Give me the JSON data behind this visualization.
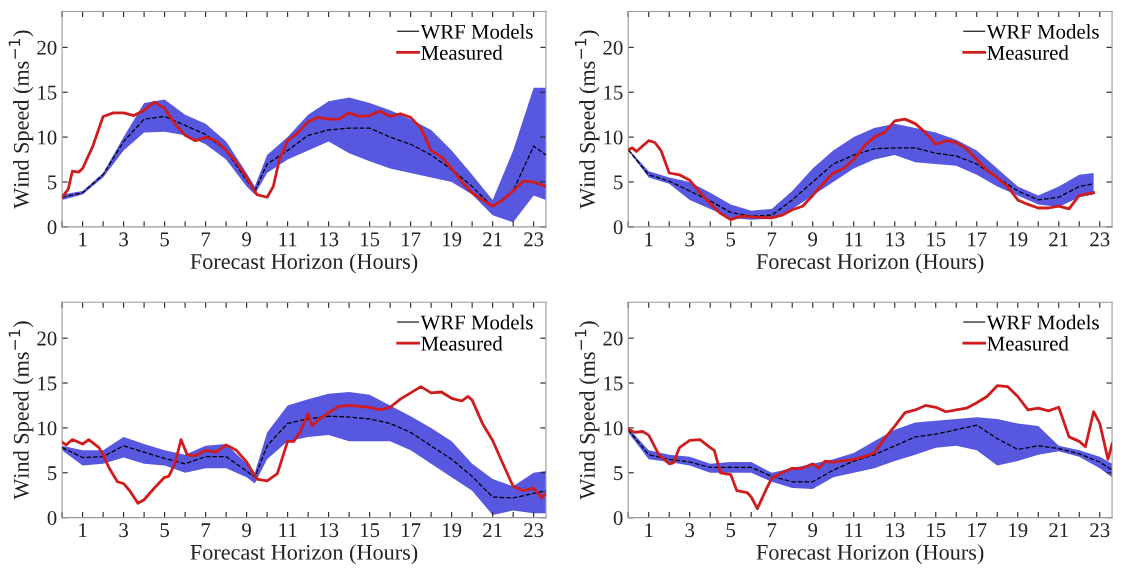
{
  "chart_data": [
    {
      "type": "line",
      "xlabel": "Forecast Horizon (Hours)",
      "ylabel": "Wind Speed (ms$^{−1}$)",
      "xlim": [
        0,
        23.6
      ],
      "ylim": [
        0,
        24
      ],
      "yticks": [
        0,
        5,
        10,
        15,
        20
      ],
      "xticks": [
        {
          "value": 0,
          "label": null
        },
        1,
        {
          "value": 2,
          "label": null
        },
        3,
        {
          "value": 4,
          "label": null
        },
        5,
        {
          "value": 6,
          "label": null
        },
        7,
        {
          "value": 8,
          "label": null
        },
        9,
        {
          "value": 10,
          "label": null
        },
        11,
        {
          "value": 12,
          "label": null
        },
        13,
        {
          "value": 14,
          "label": null
        },
        15,
        {
          "value": 16,
          "label": null
        },
        17,
        {
          "value": 18,
          "label": null
        },
        19,
        {
          "value": 20,
          "label": null
        },
        21,
        {
          "value": 22,
          "label": null
        },
        23
      ],
      "grid": false,
      "legend": "top right",
      "series": [
        {
          "name": "WRF Models",
          "color": "#000000",
          "line_style": "dashed",
          "x": [
            0,
            1,
            2,
            3,
            4,
            5,
            6,
            7,
            8,
            9,
            9.4,
            10,
            11,
            12,
            13,
            14,
            15,
            16,
            17,
            18,
            19,
            20,
            21,
            22,
            23,
            23.6
          ],
          "values": [
            3.3,
            3.8,
            5.8,
            9.5,
            12,
            12.3,
            11.3,
            10.3,
            8.5,
            5.2,
            4,
            7,
            8.5,
            10.2,
            10.8,
            11,
            11,
            10,
            9.2,
            8,
            6.4,
            4.5,
            2.2,
            4,
            9,
            8
          ],
          "lower": [
            3,
            3.6,
            5.5,
            8.5,
            10.5,
            10.6,
            10.2,
            9.2,
            7.5,
            4.5,
            3.6,
            6,
            7.5,
            8.5,
            9.5,
            8.2,
            7.3,
            6.5,
            6,
            5.5,
            5,
            3.6,
            1.3,
            0.5,
            3.5,
            3
          ],
          "upper": [
            3.6,
            4,
            6,
            10,
            13.8,
            14.2,
            12.5,
            11.5,
            9.5,
            6,
            4.5,
            8,
            10,
            12.5,
            14,
            14.4,
            13.8,
            13,
            12,
            10.8,
            8.5,
            5.8,
            3,
            8.5,
            15.5,
            15.5
          ]
        },
        {
          "name": "Measured",
          "color": "#d01c1c",
          "line_style": "solid",
          "x": [
            0,
            0.3,
            0.5,
            0.8,
            1,
            1.5,
            2,
            2.5,
            3,
            3.5,
            4,
            4.5,
            5,
            5.5,
            6,
            6.5,
            7,
            7.5,
            8,
            8.5,
            9,
            9.5,
            10,
            10.3,
            10.6,
            11,
            11.5,
            12,
            12.5,
            13,
            13.5,
            14,
            14.5,
            15,
            15.5,
            16,
            16.5,
            17,
            17.5,
            18,
            18.5,
            19,
            19.5,
            20,
            20.5,
            21,
            21.5,
            22,
            22.5,
            23,
            23.6
          ],
          "values": [
            3.3,
            4.2,
            6.2,
            6.1,
            6.5,
            9,
            12.3,
            12.7,
            12.7,
            12.4,
            13,
            13.9,
            13.2,
            11.5,
            10.2,
            9.6,
            10,
            9.6,
            8.5,
            7.2,
            5.5,
            3.6,
            3.3,
            4.5,
            7.5,
            9.6,
            10.5,
            11.7,
            12.2,
            12,
            12,
            12.7,
            12.3,
            12.4,
            12.9,
            12.3,
            12.6,
            12.2,
            11,
            8.5,
            7.8,
            6.5,
            5,
            3.8,
            3,
            2.3,
            3,
            4,
            5.1,
            5,
            4.5
          ]
        }
      ]
    },
    {
      "type": "line",
      "xlabel": "Forecast Horizon (Hours)",
      "ylabel": "Wind Speed (ms$^{−1}$)",
      "xlim": [
        0,
        23.6
      ],
      "ylim": [
        0,
        24
      ],
      "yticks": [
        0,
        5,
        10,
        15,
        20
      ],
      "xticks": [
        {
          "value": 0,
          "label": null
        },
        1,
        {
          "value": 2,
          "label": null
        },
        3,
        {
          "value": 4,
          "label": null
        },
        5,
        {
          "value": 6,
          "label": null
        },
        7,
        {
          "value": 8,
          "label": null
        },
        9,
        {
          "value": 10,
          "label": null
        },
        11,
        {
          "value": 12,
          "label": null
        },
        13,
        {
          "value": 14,
          "label": null
        },
        15,
        {
          "value": 16,
          "label": null
        },
        17,
        {
          "value": 18,
          "label": null
        },
        19,
        {
          "value": 20,
          "label": null
        },
        21,
        {
          "value": 22,
          "label": null
        },
        23
      ],
      "grid": false,
      "legend": "top right",
      "series": [
        {
          "name": "WRF Models",
          "color": "#000000",
          "line_style": "dashed",
          "x": [
            0,
            1,
            2,
            3,
            4,
            5,
            6,
            7,
            8,
            9,
            10,
            11,
            12,
            13,
            14,
            15,
            16,
            17,
            18,
            19,
            20,
            21,
            22,
            22.7
          ],
          "values": [
            8.6,
            5.8,
            5.1,
            4,
            2.9,
            1.6,
            1.2,
            1.3,
            3,
            5,
            7,
            8,
            8.7,
            8.8,
            8.8,
            8.2,
            7.9,
            7,
            5.5,
            4,
            3,
            3.3,
            4.5,
            4.8
          ],
          "lower": [
            8.5,
            5.5,
            4.8,
            3,
            2,
            1,
            0.8,
            0.9,
            2,
            3.5,
            5,
            6.5,
            7.5,
            8,
            7.2,
            7,
            6.8,
            5.8,
            4.5,
            3.5,
            2.5,
            2.2,
            3.3,
            3.6
          ],
          "upper": [
            8.7,
            6.2,
            5.5,
            5,
            3.8,
            2.5,
            1.8,
            2,
            4,
            6.5,
            8.5,
            10,
            11,
            11.5,
            11,
            10.5,
            9.7,
            8.5,
            6.5,
            4.5,
            3.5,
            4.5,
            5.8,
            6
          ]
        },
        {
          "name": "Measured",
          "color": "#d01c1c",
          "line_style": "solid",
          "x": [
            0,
            0.2,
            0.4,
            0.7,
            1,
            1.3,
            1.6,
            2,
            2.5,
            3,
            3.5,
            4,
            4.5,
            5,
            5.5,
            6,
            7,
            7.5,
            8,
            8.5,
            9,
            9.5,
            10,
            10.5,
            11,
            11.5,
            12,
            12.5,
            13,
            13.5,
            14,
            14.5,
            15,
            15.5,
            16,
            16.5,
            17,
            17.5,
            18,
            18.5,
            19,
            19.5,
            20,
            20.5,
            21,
            21.5,
            22,
            22.7
          ],
          "values": [
            8.6,
            8.8,
            8.4,
            9,
            9.6,
            9.4,
            8.5,
            6,
            5.8,
            5.2,
            3.8,
            2.6,
            1.5,
            0.8,
            1.2,
            1.1,
            1,
            1.3,
            1.9,
            2.3,
            3.5,
            4.8,
            6,
            6.5,
            7.5,
            9,
            10,
            10.5,
            11.8,
            12,
            11.5,
            10.5,
            9.2,
            9.6,
            9.4,
            8.7,
            7.5,
            6.3,
            5.5,
            4.5,
            3,
            2.5,
            2.1,
            2.1,
            2.3,
            2,
            3.5,
            3.8
          ]
        }
      ]
    },
    {
      "type": "line",
      "xlabel": "Forecast Horizon (Hours)",
      "ylabel": "Wind Speed (ms$^{−1}$)",
      "xlim": [
        0,
        23.6
      ],
      "ylim": [
        0,
        24
      ],
      "yticks": [
        0,
        5,
        10,
        15,
        20
      ],
      "xticks": [
        {
          "value": 0,
          "label": null
        },
        1,
        {
          "value": 2,
          "label": null
        },
        3,
        {
          "value": 4,
          "label": null
        },
        5,
        {
          "value": 6,
          "label": null
        },
        7,
        {
          "value": 8,
          "label": null
        },
        9,
        {
          "value": 10,
          "label": null
        },
        11,
        {
          "value": 12,
          "label": null
        },
        13,
        {
          "value": 14,
          "label": null
        },
        15,
        {
          "value": 16,
          "label": null
        },
        17,
        {
          "value": 18,
          "label": null
        },
        19,
        {
          "value": 20,
          "label": null
        },
        21,
        {
          "value": 22,
          "label": null
        },
        23
      ],
      "grid": false,
      "legend": "top right",
      "series": [
        {
          "name": "WRF Models",
          "color": "#000000",
          "line_style": "dashed",
          "x": [
            0,
            1,
            2,
            3,
            4,
            5,
            6,
            7,
            8,
            9,
            9.4,
            10,
            11,
            12,
            13,
            14,
            15,
            16,
            17,
            18,
            19,
            20,
            21,
            22,
            23,
            23.6
          ],
          "values": [
            7.8,
            6.7,
            6.8,
            8,
            7.3,
            6.6,
            6,
            6.8,
            6.8,
            5.2,
            4.5,
            8,
            10.5,
            11,
            11.3,
            11.2,
            11,
            10.5,
            9.5,
            8,
            6.5,
            4.6,
            2.3,
            2.2,
            2.7,
            3
          ],
          "lower": [
            7.5,
            5.8,
            6,
            6.7,
            6,
            5.8,
            5,
            5.5,
            5.5,
            4.5,
            3.8,
            6.5,
            8.5,
            9,
            9.2,
            8.5,
            8.5,
            8.5,
            7.5,
            6,
            4.5,
            3,
            0.3,
            0.8,
            0.5,
            0.5
          ],
          "upper": [
            8,
            7.5,
            7.5,
            9,
            8.2,
            7.5,
            7,
            8,
            8.2,
            6,
            5,
            9.5,
            12.5,
            13.2,
            13.8,
            14,
            13.7,
            12.5,
            11.3,
            10,
            8.5,
            6,
            4.3,
            3.5,
            5,
            5.2
          ]
        },
        {
          "name": "Measured",
          "color": "#d01c1c",
          "line_style": "solid",
          "x": [
            0,
            0.2,
            0.5,
            1,
            1.3,
            1.8,
            2,
            2.3,
            2.7,
            3,
            3.3,
            3.7,
            4,
            4.5,
            5,
            5.2,
            5.5,
            5.8,
            6.1,
            6.5,
            7,
            7.5,
            8,
            8.5,
            9,
            9.5,
            10,
            10.5,
            11,
            11.3,
            11.6,
            12,
            12.2,
            12.5,
            13,
            13.5,
            14,
            15,
            15.5,
            16,
            16.5,
            17,
            17.5,
            18,
            18.5,
            19,
            19.5,
            19.8,
            20,
            20.5,
            21,
            21.5,
            22,
            22.5,
            23,
            23.4,
            23.6
          ],
          "values": [
            8.4,
            8.1,
            8.7,
            8.2,
            8.7,
            7.8,
            7,
            5.5,
            4,
            3.8,
            3,
            1.6,
            2,
            3.3,
            4.5,
            4.6,
            6,
            8.7,
            7,
            6.9,
            7.5,
            7.3,
            8.1,
            7.5,
            6.2,
            4.3,
            4.1,
            4.9,
            8.5,
            8.5,
            9.5,
            11.6,
            10.2,
            10.9,
            11.7,
            12.4,
            12.5,
            12.3,
            12,
            12.3,
            13.2,
            13.9,
            14.6,
            13.9,
            14,
            13.3,
            13,
            13.5,
            13.1,
            10.5,
            8.6,
            6,
            3.5,
            3,
            3.3,
            2.2,
            2.7
          ]
        }
      ]
    },
    {
      "type": "line",
      "xlabel": "Forecast Horizon (Hours)",
      "ylabel": "Wind Speed (ms$^{−1}$)",
      "xlim": [
        0,
        23.6
      ],
      "ylim": [
        0,
        24
      ],
      "yticks": [
        0,
        5,
        10,
        15,
        20
      ],
      "xticks": [
        {
          "value": 0,
          "label": null
        },
        1,
        {
          "value": 2,
          "label": null
        },
        3,
        {
          "value": 4,
          "label": null
        },
        5,
        {
          "value": 6,
          "label": null
        },
        7,
        {
          "value": 8,
          "label": null
        },
        9,
        {
          "value": 10,
          "label": null
        },
        11,
        {
          "value": 12,
          "label": null
        },
        13,
        {
          "value": 14,
          "label": null
        },
        15,
        {
          "value": 16,
          "label": null
        },
        17,
        {
          "value": 18,
          "label": null
        },
        19,
        {
          "value": 20,
          "label": null
        },
        21,
        {
          "value": 22,
          "label": null
        },
        23
      ],
      "grid": false,
      "legend": "top right",
      "series": [
        {
          "name": "WRF Models",
          "color": "#000000",
          "line_style": "dashed",
          "x": [
            0,
            1,
            2,
            3,
            4,
            5,
            6,
            7,
            8,
            9,
            10,
            11,
            12,
            13,
            14,
            15,
            16,
            17,
            18,
            19,
            20,
            21,
            22,
            23,
            23.6
          ],
          "values": [
            9.8,
            7,
            6.5,
            6.2,
            5.6,
            5.6,
            5.6,
            4.6,
            4,
            4,
            5.3,
            6.3,
            7,
            8,
            9,
            9.3,
            9.8,
            10.3,
            8.8,
            7.6,
            8,
            7.7,
            7.1,
            6.2,
            5.3
          ],
          "lower": [
            9.5,
            6.5,
            6.2,
            5.8,
            5,
            5,
            5,
            4,
            3.3,
            3.2,
            4.5,
            5,
            5.5,
            6.3,
            7,
            7.8,
            8,
            7.5,
            5.8,
            6.3,
            7,
            7.4,
            6.8,
            5.5,
            4.5
          ],
          "upper": [
            10,
            7.5,
            7,
            6.8,
            6,
            6.2,
            6.2,
            5,
            5.5,
            6,
            6.5,
            7.2,
            8.5,
            9.8,
            10.6,
            10.8,
            11,
            11.2,
            11,
            10.5,
            10.2,
            8,
            7.5,
            6.8,
            6
          ]
        },
        {
          "name": "Measured",
          "color": "#d01c1c",
          "line_style": "solid",
          "x": [
            0,
            0.3,
            0.7,
            1,
            1.5,
            2,
            2.2,
            2.5,
            3,
            3.5,
            4,
            4.2,
            4.5,
            5,
            5.3,
            5.8,
            6,
            6.3,
            6.7,
            7,
            7.5,
            8,
            8.5,
            9,
            9.3,
            9.6,
            10,
            11,
            11.5,
            12,
            12.5,
            13,
            13.5,
            14,
            14.5,
            15,
            15.5,
            16,
            16.5,
            17,
            17.5,
            18,
            18.5,
            19,
            19.5,
            20,
            20.5,
            21,
            21.5,
            22,
            22.3,
            22.7,
            23,
            23.4,
            23.6
          ],
          "values": [
            9.9,
            9.5,
            9.6,
            9.2,
            7,
            6,
            6.1,
            7.8,
            8.6,
            8.7,
            7.8,
            7.5,
            5,
            4.8,
            3,
            2.8,
            2.3,
            1,
            3,
            4.4,
            5,
            5.5,
            5.5,
            6,
            5.5,
            6.3,
            6.2,
            6.5,
            6.8,
            7.2,
            8.8,
            10.2,
            11.7,
            12,
            12.5,
            12.3,
            11.8,
            12,
            12.2,
            12.8,
            13.5,
            14.7,
            14.6,
            13.5,
            12,
            12.2,
            11.9,
            12.3,
            9,
            8.5,
            7.9,
            11.8,
            10.5,
            6.5,
            8.2
          ]
        }
      ]
    }
  ]
}
